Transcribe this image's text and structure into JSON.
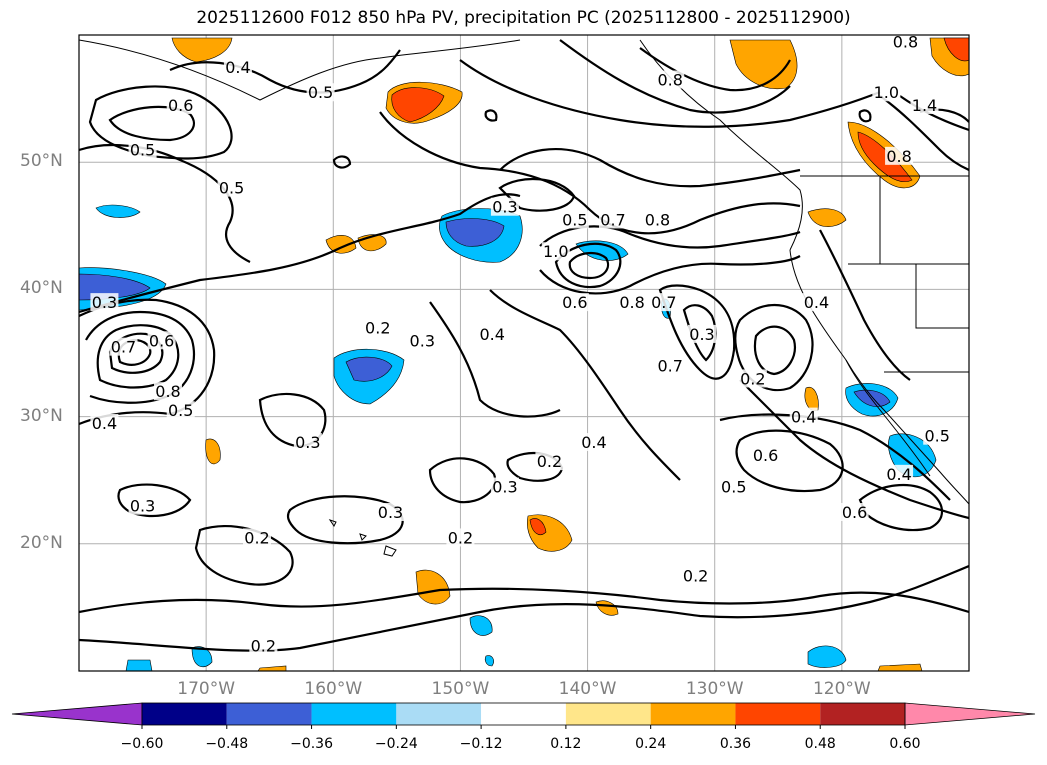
{
  "title": "2025112600 F012 850 hPa PV, precipitation PC (2025112800 - 2025112900)",
  "colors": {
    "orange": "#ffa500",
    "red_orange": "#ff4500",
    "dark_red": "#b22222",
    "light_blue": "#00bfff",
    "mid_blue": "#3d5fd6",
    "pink": "#ff88aa",
    "purple": "#9933cc",
    "navy": "#000088",
    "pale_blue": "#aadcf5",
    "pale_yellow": "#ffe68a"
  },
  "map": {
    "lon_min": -180,
    "lon_max": -110,
    "lat_min": 10,
    "lat_max": 60,
    "lat_ticks": [
      {
        "value": 20,
        "label": "20°N"
      },
      {
        "value": 30,
        "label": "30°N"
      },
      {
        "value": 40,
        "label": "40°N"
      },
      {
        "value": 50,
        "label": "50°N"
      }
    ],
    "lon_ticks": [
      {
        "value": -170,
        "label": "170°W"
      },
      {
        "value": -160,
        "label": "160°W"
      },
      {
        "value": -150,
        "label": "150°W"
      },
      {
        "value": -140,
        "label": "140°W"
      },
      {
        "value": -130,
        "label": "130°W"
      },
      {
        "value": -120,
        "label": "120°W"
      }
    ]
  },
  "contour_labels": [
    {
      "text": "0.4",
      "lon": -167.5,
      "lat": 57.5
    },
    {
      "text": "0.5",
      "lon": -161,
      "lat": 55.5
    },
    {
      "text": "0.6",
      "lon": -172,
      "lat": 54.5
    },
    {
      "text": "0.5",
      "lon": -175,
      "lat": 51
    },
    {
      "text": "0.5",
      "lon": -168,
      "lat": 48
    },
    {
      "text": "0.3",
      "lon": -146.5,
      "lat": 46.5
    },
    {
      "text": "0.5",
      "lon": -141,
      "lat": 45.5
    },
    {
      "text": "0.7",
      "lon": -138,
      "lat": 45.5
    },
    {
      "text": "0.8",
      "lon": -134.5,
      "lat": 45.5
    },
    {
      "text": "0.8",
      "lon": -133.5,
      "lat": 56.5
    },
    {
      "text": "0.8",
      "lon": -115,
      "lat": 59.5
    },
    {
      "text": "1.0",
      "lon": -116.5,
      "lat": 55.5
    },
    {
      "text": "1.4",
      "lon": -113.5,
      "lat": 54.5
    },
    {
      "text": "0.8",
      "lon": -115.5,
      "lat": 50.5
    },
    {
      "text": "1.0",
      "lon": -142.5,
      "lat": 43
    },
    {
      "text": "0.6",
      "lon": -141,
      "lat": 39
    },
    {
      "text": "0.8",
      "lon": -136.5,
      "lat": 39
    },
    {
      "text": "0.7",
      "lon": -134,
      "lat": 39
    },
    {
      "text": "0.4",
      "lon": -122,
      "lat": 39
    },
    {
      "text": "0.3",
      "lon": -178,
      "lat": 39
    },
    {
      "text": "0.2",
      "lon": -156.5,
      "lat": 37
    },
    {
      "text": "0.4",
      "lon": -147.5,
      "lat": 36.5
    },
    {
      "text": "0.3",
      "lon": -153,
      "lat": 36
    },
    {
      "text": "0.7",
      "lon": -176.5,
      "lat": 35.5
    },
    {
      "text": "0.6",
      "lon": -173.5,
      "lat": 36
    },
    {
      "text": "0.3",
      "lon": -131,
      "lat": 36.5
    },
    {
      "text": "0.7",
      "lon": -133.5,
      "lat": 34
    },
    {
      "text": "0.2",
      "lon": -127,
      "lat": 33
    },
    {
      "text": "0.8",
      "lon": -173,
      "lat": 32
    },
    {
      "text": "0.5",
      "lon": -172,
      "lat": 30.5
    },
    {
      "text": "0.4",
      "lon": -178,
      "lat": 29.5
    },
    {
      "text": "0.4",
      "lon": -123,
      "lat": 30
    },
    {
      "text": "0.5",
      "lon": -112.5,
      "lat": 28.5
    },
    {
      "text": "0.4",
      "lon": -115.5,
      "lat": 25.5
    },
    {
      "text": "0.3",
      "lon": -162,
      "lat": 28
    },
    {
      "text": "0.4",
      "lon": -139.5,
      "lat": 28
    },
    {
      "text": "0.6",
      "lon": -126,
      "lat": 27
    },
    {
      "text": "0.2",
      "lon": -143,
      "lat": 26.5
    },
    {
      "text": "0.3",
      "lon": -146.5,
      "lat": 24.5
    },
    {
      "text": "0.5",
      "lon": -128.5,
      "lat": 24.5
    },
    {
      "text": "0.3",
      "lon": -175,
      "lat": 23
    },
    {
      "text": "0.6",
      "lon": -119,
      "lat": 22.5
    },
    {
      "text": "0.3",
      "lon": -155.5,
      "lat": 22.5
    },
    {
      "text": "0.2",
      "lon": -150,
      "lat": 20.5
    },
    {
      "text": "0.2",
      "lon": -166,
      "lat": 20.5
    },
    {
      "text": "0.2",
      "lon": -131.5,
      "lat": 17.5
    },
    {
      "text": "0.2",
      "lon": -165.5,
      "lat": 12
    }
  ],
  "colorbar": {
    "tick_labels": [
      "−0.60",
      "−0.48",
      "−0.36",
      "−0.24",
      "−0.12",
      "0.12",
      "0.24",
      "0.36",
      "0.48",
      "0.60"
    ],
    "colors": [
      "#9933cc",
      "#000088",
      "#3d5fd6",
      "#00bfff",
      "#aadcf5",
      "#ffffff",
      "#ffe68a",
      "#ffa500",
      "#ff4500",
      "#b22222",
      "#ff88aa"
    ]
  }
}
